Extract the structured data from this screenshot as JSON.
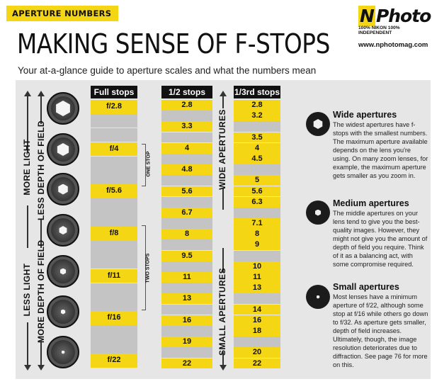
{
  "header": {
    "tag": "APERTURE NUMBERS",
    "logo_brand_n": "N",
    "logo_brand_rest": "Photo",
    "logo_tagline": "100% NIKON 100% INDEPENDENT",
    "logo_url": "www.nphotomag.com",
    "title": "MAKING SENSE OF F-STOPS",
    "subtitle": "Your at-a-glance guide to aperture scales and what the numbers mean"
  },
  "side_labels": {
    "more_light": "MORE LIGHT",
    "less_dof": "LESS DEPTH OF FIELD",
    "less_light": "LESS LIGHT",
    "more_dof": "MORE DEPTH OF FIELD",
    "wide_apertures": "WIDE APERTURES",
    "small_apertures": "SMALL APERTURES",
    "one_stop": "ONE STOP",
    "two_stops": "TWO STOPS"
  },
  "columns": {
    "full_header": "Full stops",
    "half_header": "1/2 stops",
    "third_header": "1/3rd stops",
    "full": [
      "f/2.8",
      "",
      "",
      "f/4",
      "",
      "",
      "f/5.6",
      "",
      "",
      "f/8",
      "",
      "",
      "f/11",
      "",
      "",
      "f/16",
      "",
      "",
      "f/22"
    ],
    "half": [
      "2.8",
      "",
      "3.3",
      "",
      "4",
      "",
      "4.8",
      "",
      "5.6",
      "",
      "6.7",
      "",
      "8",
      "",
      "9.5",
      "",
      "11",
      "",
      "13",
      "",
      "16",
      "",
      "19",
      "",
      "22"
    ],
    "third": [
      "2.8",
      "3.2",
      "",
      "3.5",
      "4",
      "4.5",
      "",
      "5",
      "5.6",
      "6.3",
      "",
      "7.1",
      "8",
      "9",
      "",
      "10",
      "11",
      "13",
      "",
      "14",
      "16",
      "18",
      "",
      "20",
      "22"
    ]
  },
  "info": [
    {
      "title": "Wide apertures",
      "text": "The widest apertures have f-stops with the smallest numbers. The maximum aperture available depends on the lens you're using. On many zoom lenses, for example, the maximum aperture gets smaller as you zoom in."
    },
    {
      "title": "Medium apertures",
      "text": "The middle apertures on your lens tend to give you the best-quality images. However, they might not give you the amount of depth of field you require. Think of it as a balancing act, with some compromise required."
    },
    {
      "title": "Small apertures",
      "text": "Most lenses have a minimum aperture of f/22, although some stop at f/16 while others go down to f/32. As aperture gets smaller, depth of field increases. Ultimately, though, the image resolution deteriorates due to diffraction. See page 76 for more on this."
    }
  ]
}
